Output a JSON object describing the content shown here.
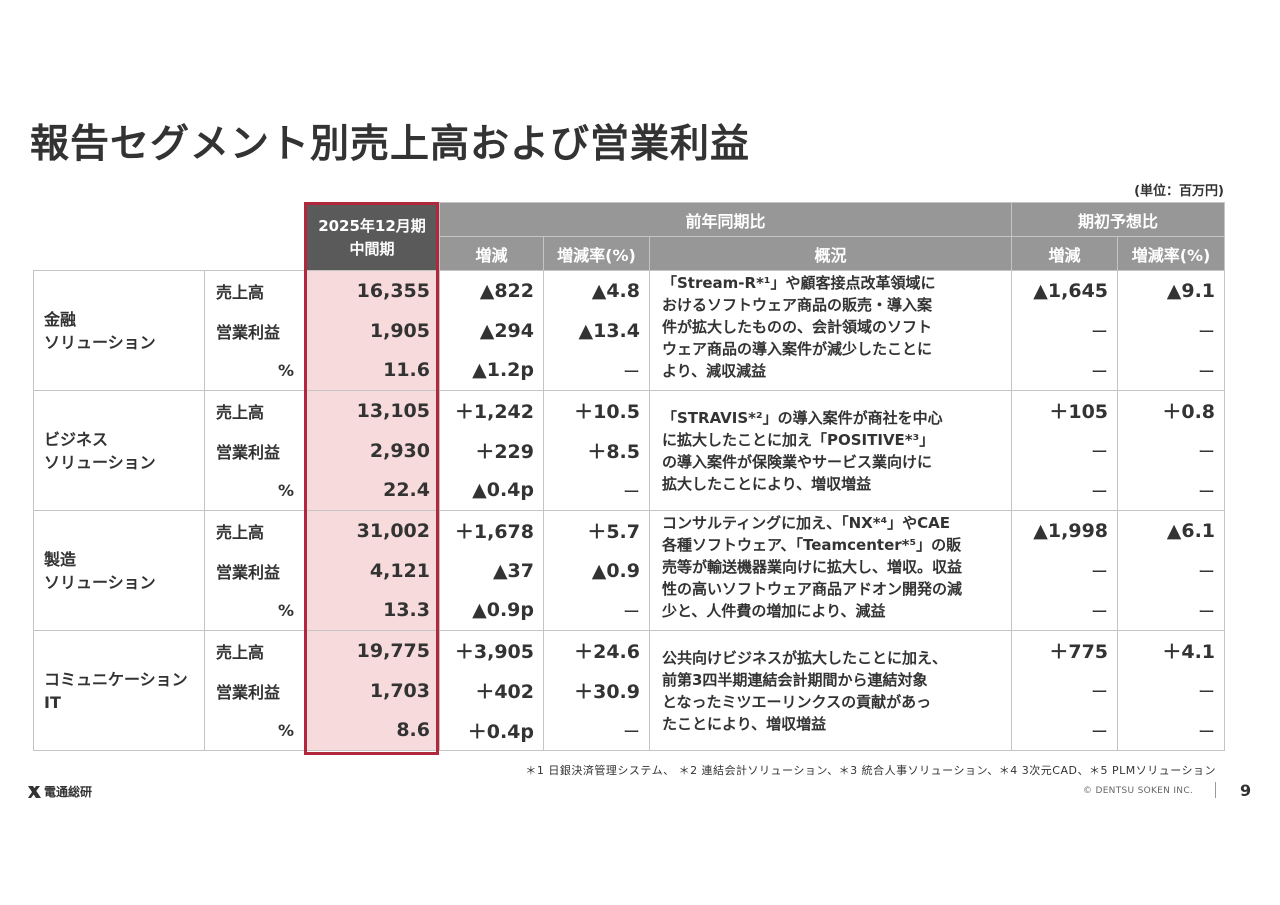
{
  "title": "報告セグメント別売上高および営業利益",
  "unit": "(単位：百万円)",
  "header": {
    "period_line1": "2025年12月期",
    "period_line2": "中間期",
    "yoy_group": "前年同期比",
    "forecast_group": "期初予想比",
    "change": "増減",
    "rate": "増減率(%)",
    "overview": "概況",
    "f_change": "増減",
    "f_rate": "増減率(%)"
  },
  "segments": [
    {
      "name_line1": "金融",
      "name_line2": "ソリューション",
      "rows": [
        {
          "label": "売上高",
          "value": "16,355",
          "change": "▲822",
          "rate": "▲4.8",
          "f_change": "▲1,645",
          "f_rate": "▲9.1"
        },
        {
          "label": "営業利益",
          "value": "1,905",
          "change": "▲294",
          "rate": "▲13.4",
          "f_change": "ー",
          "f_rate": "ー"
        },
        {
          "label": "%",
          "value": "11.6",
          "change": "▲1.2p",
          "rate": "ー",
          "f_change": "ー",
          "f_rate": "ー"
        }
      ],
      "desc": [
        "「Stream-R*¹」や顧客接点改革領域に",
        "おけるソフトウェア商品の販売・導入案",
        "件が拡大したものの、会計領域のソフト",
        "ウェア商品の導入案件が減少したことに",
        "より、減収減益"
      ]
    },
    {
      "name_line1": "ビジネス",
      "name_line2": "ソリューション",
      "rows": [
        {
          "label": "売上高",
          "value": "13,105",
          "change": "＋1,242",
          "rate": "＋10.5",
          "f_change": "＋105",
          "f_rate": "＋0.8"
        },
        {
          "label": "営業利益",
          "value": "2,930",
          "change": "＋229",
          "rate": "＋8.5",
          "f_change": "ー",
          "f_rate": "ー"
        },
        {
          "label": "%",
          "value": "22.4",
          "change": "▲0.4p",
          "rate": "ー",
          "f_change": "ー",
          "f_rate": "ー"
        }
      ],
      "desc": [
        "「STRAVIS*²」の導入案件が商社を中心",
        "に拡大したことに加え「POSITIVE*³」",
        "の導入案件が保険業やサービス業向けに",
        "拡大したことにより、増収増益"
      ]
    },
    {
      "name_line1": "製造",
      "name_line2": "ソリューション",
      "rows": [
        {
          "label": "売上高",
          "value": "31,002",
          "change": "＋1,678",
          "rate": "＋5.7",
          "f_change": "▲1,998",
          "f_rate": "▲6.1"
        },
        {
          "label": "営業利益",
          "value": "4,121",
          "change": "▲37",
          "rate": "▲0.9",
          "f_change": "ー",
          "f_rate": "ー"
        },
        {
          "label": "%",
          "value": "13.3",
          "change": "▲0.9p",
          "rate": "ー",
          "f_change": "ー",
          "f_rate": "ー"
        }
      ],
      "desc": [
        "コンサルティングに加え、「NX*⁴」やCAE",
        "各種ソフトウェア、「Teamcenter*⁵」の販",
        "売等が輸送機器業向けに拡大し、増収。収益",
        "性の高いソフトウェア商品アドオン開発の減",
        "少と、人件費の増加により、減益"
      ]
    },
    {
      "name_line1": "コミュニケーション",
      "name_line2": "IT",
      "rows": [
        {
          "label": "売上高",
          "value": "19,775",
          "change": "＋3,905",
          "rate": "＋24.6",
          "f_change": "＋775",
          "f_rate": "＋4.1"
        },
        {
          "label": "営業利益",
          "value": "1,703",
          "change": "＋402",
          "rate": "＋30.9",
          "f_change": "ー",
          "f_rate": "ー"
        },
        {
          "label": "%",
          "value": "8.6",
          "change": "＋0.4p",
          "rate": "ー",
          "f_change": "ー",
          "f_rate": "ー"
        }
      ],
      "desc": [
        "公共向けビジネスが拡大したことに加え、",
        "前第3四半期連結会計期間から連結対象",
        "となったミツエーリンクスの貢献があっ",
        "たことにより、増収増益"
      ]
    }
  ],
  "footnote": "＊1 日銀決済管理システム、 ＊2 連結会計ソリューション、＊3 統合人事ソリューション、＊4 3次元CAD、＊5 PLMソリューション",
  "logo_text": "電通総研",
  "copyright": "© DENTSU SOKEN INC.",
  "page_number": "9",
  "colors": {
    "highlight_border": "#b1273b",
    "highlight_fill": "#f7dbdc",
    "header_gray": "#979797",
    "header_dark": "#5a5a5a"
  }
}
